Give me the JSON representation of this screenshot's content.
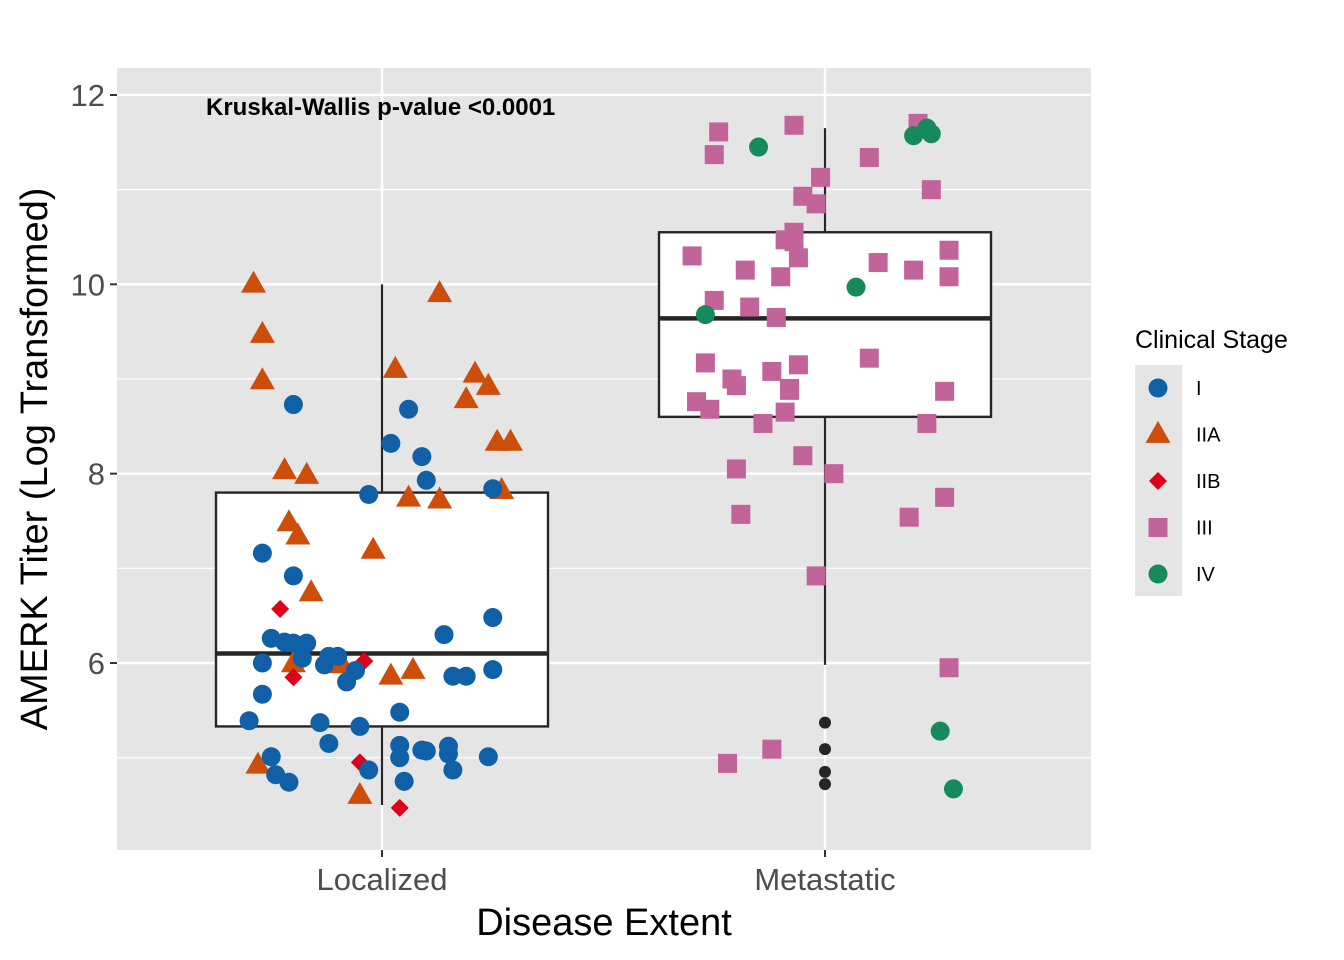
{
  "chart_data": {
    "type": "boxplot-jitter",
    "title": "",
    "xlabel": "Disease Extent",
    "ylabel": "AMERK Titer (Log Transformed)",
    "categories": [
      "Localized",
      "Metastatic"
    ],
    "ylim": [
      4.0,
      12.25
    ],
    "yticks": [
      6,
      8,
      10,
      12
    ],
    "grid": true,
    "annotation": "Kruskal-Wallis p-value <0.0001",
    "legend": {
      "title": "Clinical Stage",
      "placement": "right",
      "entries": [
        {
          "label": "I",
          "shape": "circle",
          "color": "#1060a8"
        },
        {
          "label": "IIA",
          "shape": "triangle",
          "color": "#cc4e0a"
        },
        {
          "label": "IIB",
          "shape": "diamond",
          "color": "#dd0018"
        },
        {
          "label": "III",
          "shape": "square",
          "color": "#c2649a"
        },
        {
          "label": "IV",
          "shape": "circle",
          "color": "#168a5c"
        }
      ]
    },
    "boxes": [
      {
        "category": "Localized",
        "lower_whisker": 4.5,
        "q1": 5.33,
        "median": 6.1,
        "q3": 7.8,
        "upper_whisker": 10.0,
        "outliers": []
      },
      {
        "category": "Metastatic",
        "lower_whisker": 5.98,
        "q1": 8.6,
        "median": 9.64,
        "q3": 10.55,
        "upper_whisker": 11.65,
        "outliers": [
          5.37,
          5.09,
          4.85,
          4.72
        ]
      }
    ],
    "points": [
      {
        "category": "Localized",
        "jitter": -0.29,
        "y": 10.0,
        "stage": "IIA"
      },
      {
        "category": "Localized",
        "jitter": -0.27,
        "y": 9.47,
        "stage": "IIA"
      },
      {
        "category": "Localized",
        "jitter": -0.27,
        "y": 8.98,
        "stage": "IIA"
      },
      {
        "category": "Localized",
        "jitter": 0.13,
        "y": 9.9,
        "stage": "IIA"
      },
      {
        "category": "Localized",
        "jitter": 0.03,
        "y": 9.1,
        "stage": "IIA"
      },
      {
        "category": "Localized",
        "jitter": 0.21,
        "y": 9.05,
        "stage": "IIA"
      },
      {
        "category": "Localized",
        "jitter": 0.24,
        "y": 8.92,
        "stage": "IIA"
      },
      {
        "category": "Localized",
        "jitter": 0.19,
        "y": 8.78,
        "stage": "IIA"
      },
      {
        "category": "Localized",
        "jitter": 0.26,
        "y": 8.33,
        "stage": "IIA"
      },
      {
        "category": "Localized",
        "jitter": 0.29,
        "y": 8.33,
        "stage": "IIA"
      },
      {
        "category": "Localized",
        "jitter": -0.22,
        "y": 8.03,
        "stage": "IIA"
      },
      {
        "category": "Localized",
        "jitter": -0.17,
        "y": 7.98,
        "stage": "IIA"
      },
      {
        "category": "Localized",
        "jitter": 0.06,
        "y": 7.74,
        "stage": "IIA"
      },
      {
        "category": "Localized",
        "jitter": 0.13,
        "y": 7.72,
        "stage": "IIA"
      },
      {
        "category": "Localized",
        "jitter": 0.27,
        "y": 7.82,
        "stage": "IIA"
      },
      {
        "category": "Localized",
        "jitter": -0.21,
        "y": 7.48,
        "stage": "IIA"
      },
      {
        "category": "Localized",
        "jitter": -0.19,
        "y": 7.34,
        "stage": "IIA"
      },
      {
        "category": "Localized",
        "jitter": -0.02,
        "y": 7.19,
        "stage": "IIA"
      },
      {
        "category": "Localized",
        "jitter": -0.16,
        "y": 6.74,
        "stage": "IIA"
      },
      {
        "category": "Localized",
        "jitter": -0.2,
        "y": 5.99,
        "stage": "IIA"
      },
      {
        "category": "Localized",
        "jitter": -0.09,
        "y": 5.98,
        "stage": "IIA"
      },
      {
        "category": "Localized",
        "jitter": 0.02,
        "y": 5.86,
        "stage": "IIA"
      },
      {
        "category": "Localized",
        "jitter": 0.07,
        "y": 5.92,
        "stage": "IIA"
      },
      {
        "category": "Localized",
        "jitter": -0.28,
        "y": 4.92,
        "stage": "IIA"
      },
      {
        "category": "Localized",
        "jitter": -0.05,
        "y": 4.6,
        "stage": "IIA"
      },
      {
        "category": "Localized",
        "jitter": -0.23,
        "y": 6.57,
        "stage": "IIB"
      },
      {
        "category": "Localized",
        "jitter": -0.2,
        "y": 5.85,
        "stage": "IIB"
      },
      {
        "category": "Localized",
        "jitter": -0.04,
        "y": 6.02,
        "stage": "IIB"
      },
      {
        "category": "Localized",
        "jitter": -0.05,
        "y": 4.95,
        "stage": "IIB"
      },
      {
        "category": "Localized",
        "jitter": 0.04,
        "y": 4.47,
        "stage": "IIB"
      },
      {
        "category": "Localized",
        "jitter": -0.2,
        "y": 8.73,
        "stage": "I"
      },
      {
        "category": "Localized",
        "jitter": 0.06,
        "y": 8.68,
        "stage": "I"
      },
      {
        "category": "Localized",
        "jitter": 0.02,
        "y": 8.32,
        "stage": "I"
      },
      {
        "category": "Localized",
        "jitter": 0.09,
        "y": 8.18,
        "stage": "I"
      },
      {
        "category": "Localized",
        "jitter": 0.1,
        "y": 7.93,
        "stage": "I"
      },
      {
        "category": "Localized",
        "jitter": -0.03,
        "y": 7.78,
        "stage": "I"
      },
      {
        "category": "Localized",
        "jitter": 0.25,
        "y": 7.84,
        "stage": "I"
      },
      {
        "category": "Localized",
        "jitter": -0.27,
        "y": 7.16,
        "stage": "I"
      },
      {
        "category": "Localized",
        "jitter": -0.2,
        "y": 6.92,
        "stage": "I"
      },
      {
        "category": "Localized",
        "jitter": 0.25,
        "y": 6.48,
        "stage": "I"
      },
      {
        "category": "Localized",
        "jitter": 0.14,
        "y": 6.3,
        "stage": "I"
      },
      {
        "category": "Localized",
        "jitter": -0.25,
        "y": 6.26,
        "stage": "I"
      },
      {
        "category": "Localized",
        "jitter": -0.22,
        "y": 6.22,
        "stage": "I"
      },
      {
        "category": "Localized",
        "jitter": -0.2,
        "y": 6.21,
        "stage": "I"
      },
      {
        "category": "Localized",
        "jitter": -0.17,
        "y": 6.21,
        "stage": "I"
      },
      {
        "category": "Localized",
        "jitter": -0.18,
        "y": 6.05,
        "stage": "I"
      },
      {
        "category": "Localized",
        "jitter": -0.27,
        "y": 6.0,
        "stage": "I"
      },
      {
        "category": "Localized",
        "jitter": -0.12,
        "y": 6.07,
        "stage": "I"
      },
      {
        "category": "Localized",
        "jitter": -0.1,
        "y": 6.07,
        "stage": "I"
      },
      {
        "category": "Localized",
        "jitter": -0.13,
        "y": 5.98,
        "stage": "I"
      },
      {
        "category": "Localized",
        "jitter": -0.06,
        "y": 5.92,
        "stage": "I"
      },
      {
        "category": "Localized",
        "jitter": -0.08,
        "y": 5.8,
        "stage": "I"
      },
      {
        "category": "Localized",
        "jitter": 0.16,
        "y": 5.86,
        "stage": "I"
      },
      {
        "category": "Localized",
        "jitter": 0.19,
        "y": 5.86,
        "stage": "I"
      },
      {
        "category": "Localized",
        "jitter": 0.25,
        "y": 5.93,
        "stage": "I"
      },
      {
        "category": "Localized",
        "jitter": -0.27,
        "y": 5.67,
        "stage": "I"
      },
      {
        "category": "Localized",
        "jitter": -0.3,
        "y": 5.39,
        "stage": "I"
      },
      {
        "category": "Localized",
        "jitter": -0.14,
        "y": 5.37,
        "stage": "I"
      },
      {
        "category": "Localized",
        "jitter": -0.05,
        "y": 5.33,
        "stage": "I"
      },
      {
        "category": "Localized",
        "jitter": 0.04,
        "y": 5.48,
        "stage": "I"
      },
      {
        "category": "Localized",
        "jitter": -0.12,
        "y": 5.15,
        "stage": "I"
      },
      {
        "category": "Localized",
        "jitter": -0.25,
        "y": 5.01,
        "stage": "I"
      },
      {
        "category": "Localized",
        "jitter": 0.04,
        "y": 5.13,
        "stage": "I"
      },
      {
        "category": "Localized",
        "jitter": 0.04,
        "y": 5.0,
        "stage": "I"
      },
      {
        "category": "Localized",
        "jitter": 0.09,
        "y": 5.08,
        "stage": "I"
      },
      {
        "category": "Localized",
        "jitter": 0.1,
        "y": 5.07,
        "stage": "I"
      },
      {
        "category": "Localized",
        "jitter": 0.15,
        "y": 5.12,
        "stage": "I"
      },
      {
        "category": "Localized",
        "jitter": 0.15,
        "y": 5.04,
        "stage": "I"
      },
      {
        "category": "Localized",
        "jitter": 0.24,
        "y": 5.01,
        "stage": "I"
      },
      {
        "category": "Localized",
        "jitter": -0.24,
        "y": 4.82,
        "stage": "I"
      },
      {
        "category": "Localized",
        "jitter": -0.21,
        "y": 4.74,
        "stage": "I"
      },
      {
        "category": "Localized",
        "jitter": -0.03,
        "y": 4.87,
        "stage": "I"
      },
      {
        "category": "Localized",
        "jitter": 0.05,
        "y": 4.75,
        "stage": "I"
      },
      {
        "category": "Localized",
        "jitter": 0.16,
        "y": 4.87,
        "stage": "I"
      },
      {
        "category": "Metastatic",
        "jitter": -0.24,
        "y": 11.61,
        "stage": "III"
      },
      {
        "category": "Metastatic",
        "jitter": -0.25,
        "y": 11.37,
        "stage": "III"
      },
      {
        "category": "Metastatic",
        "jitter": -0.07,
        "y": 11.68,
        "stage": "III"
      },
      {
        "category": "Metastatic",
        "jitter": 0.1,
        "y": 11.34,
        "stage": "III"
      },
      {
        "category": "Metastatic",
        "jitter": 0.21,
        "y": 11.7,
        "stage": "III"
      },
      {
        "category": "Metastatic",
        "jitter": -0.01,
        "y": 11.13,
        "stage": "III"
      },
      {
        "category": "Metastatic",
        "jitter": -0.05,
        "y": 10.93,
        "stage": "III"
      },
      {
        "category": "Metastatic",
        "jitter": -0.02,
        "y": 10.85,
        "stage": "III"
      },
      {
        "category": "Metastatic",
        "jitter": 0.24,
        "y": 11.0,
        "stage": "III"
      },
      {
        "category": "Metastatic",
        "jitter": -0.09,
        "y": 10.47,
        "stage": "III"
      },
      {
        "category": "Metastatic",
        "jitter": -0.07,
        "y": 10.55,
        "stage": "III"
      },
      {
        "category": "Metastatic",
        "jitter": -0.07,
        "y": 10.45,
        "stage": "III"
      },
      {
        "category": "Metastatic",
        "jitter": -0.06,
        "y": 10.28,
        "stage": "III"
      },
      {
        "category": "Metastatic",
        "jitter": -0.3,
        "y": 10.3,
        "stage": "III"
      },
      {
        "category": "Metastatic",
        "jitter": -0.18,
        "y": 10.15,
        "stage": "III"
      },
      {
        "category": "Metastatic",
        "jitter": -0.1,
        "y": 10.08,
        "stage": "III"
      },
      {
        "category": "Metastatic",
        "jitter": 0.12,
        "y": 10.23,
        "stage": "III"
      },
      {
        "category": "Metastatic",
        "jitter": 0.2,
        "y": 10.15,
        "stage": "III"
      },
      {
        "category": "Metastatic",
        "jitter": 0.28,
        "y": 10.36,
        "stage": "III"
      },
      {
        "category": "Metastatic",
        "jitter": 0.28,
        "y": 10.08,
        "stage": "III"
      },
      {
        "category": "Metastatic",
        "jitter": -0.25,
        "y": 9.83,
        "stage": "III"
      },
      {
        "category": "Metastatic",
        "jitter": -0.17,
        "y": 9.76,
        "stage": "III"
      },
      {
        "category": "Metastatic",
        "jitter": -0.11,
        "y": 9.65,
        "stage": "III"
      },
      {
        "category": "Metastatic",
        "jitter": -0.27,
        "y": 9.17,
        "stage": "III"
      },
      {
        "category": "Metastatic",
        "jitter": -0.21,
        "y": 9.0,
        "stage": "III"
      },
      {
        "category": "Metastatic",
        "jitter": -0.2,
        "y": 8.93,
        "stage": "III"
      },
      {
        "category": "Metastatic",
        "jitter": -0.12,
        "y": 9.08,
        "stage": "III"
      },
      {
        "category": "Metastatic",
        "jitter": -0.06,
        "y": 9.15,
        "stage": "III"
      },
      {
        "category": "Metastatic",
        "jitter": -0.08,
        "y": 8.88,
        "stage": "III"
      },
      {
        "category": "Metastatic",
        "jitter": -0.08,
        "y": 8.9,
        "stage": "III"
      },
      {
        "category": "Metastatic",
        "jitter": 0.1,
        "y": 9.22,
        "stage": "III"
      },
      {
        "category": "Metastatic",
        "jitter": 0.27,
        "y": 8.87,
        "stage": "III"
      },
      {
        "category": "Metastatic",
        "jitter": -0.29,
        "y": 8.76,
        "stage": "III"
      },
      {
        "category": "Metastatic",
        "jitter": -0.26,
        "y": 8.68,
        "stage": "III"
      },
      {
        "category": "Metastatic",
        "jitter": -0.14,
        "y": 8.53,
        "stage": "III"
      },
      {
        "category": "Metastatic",
        "jitter": -0.09,
        "y": 8.65,
        "stage": "III"
      },
      {
        "category": "Metastatic",
        "jitter": 0.23,
        "y": 8.53,
        "stage": "III"
      },
      {
        "category": "Metastatic",
        "jitter": -0.05,
        "y": 8.19,
        "stage": "III"
      },
      {
        "category": "Metastatic",
        "jitter": 0.02,
        "y": 8.0,
        "stage": "III"
      },
      {
        "category": "Metastatic",
        "jitter": -0.2,
        "y": 8.05,
        "stage": "III"
      },
      {
        "category": "Metastatic",
        "jitter": -0.19,
        "y": 7.57,
        "stage": "III"
      },
      {
        "category": "Metastatic",
        "jitter": 0.19,
        "y": 7.54,
        "stage": "III"
      },
      {
        "category": "Metastatic",
        "jitter": 0.27,
        "y": 7.75,
        "stage": "III"
      },
      {
        "category": "Metastatic",
        "jitter": -0.02,
        "y": 6.92,
        "stage": "III"
      },
      {
        "category": "Metastatic",
        "jitter": 0.28,
        "y": 5.95,
        "stage": "III"
      },
      {
        "category": "Metastatic",
        "jitter": -0.12,
        "y": 5.09,
        "stage": "III"
      },
      {
        "category": "Metastatic",
        "jitter": -0.22,
        "y": 4.94,
        "stage": "III"
      },
      {
        "category": "Metastatic",
        "jitter": -0.15,
        "y": 11.45,
        "stage": "IV"
      },
      {
        "category": "Metastatic",
        "jitter": 0.2,
        "y": 11.57,
        "stage": "IV"
      },
      {
        "category": "Metastatic",
        "jitter": 0.23,
        "y": 11.65,
        "stage": "IV"
      },
      {
        "category": "Metastatic",
        "jitter": 0.24,
        "y": 11.59,
        "stage": "IV"
      },
      {
        "category": "Metastatic",
        "jitter": 0.07,
        "y": 9.97,
        "stage": "IV"
      },
      {
        "category": "Metastatic",
        "jitter": -0.27,
        "y": 9.68,
        "stage": "IV"
      },
      {
        "category": "Metastatic",
        "jitter": 0.26,
        "y": 5.28,
        "stage": "IV"
      },
      {
        "category": "Metastatic",
        "jitter": 0.29,
        "y": 4.67,
        "stage": "IV"
      }
    ]
  }
}
